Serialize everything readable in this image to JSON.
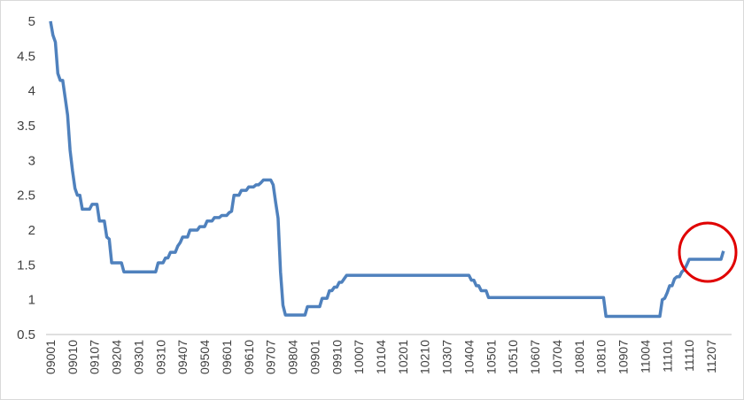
{
  "chart_data": {
    "type": "line",
    "color": "#4f81bd",
    "categories": [
      "09001",
      null,
      null,
      null,
      null,
      null,
      null,
      null,
      null,
      "09010",
      null,
      null,
      null,
      null,
      null,
      null,
      null,
      null,
      "09107",
      null,
      null,
      null,
      null,
      null,
      null,
      null,
      null,
      "09204",
      null,
      null,
      null,
      null,
      null,
      null,
      null,
      null,
      "09301",
      null,
      null,
      null,
      null,
      null,
      null,
      null,
      null,
      "09310",
      null,
      null,
      null,
      null,
      null,
      null,
      null,
      null,
      "09407",
      null,
      null,
      null,
      null,
      null,
      null,
      null,
      null,
      "09504",
      null,
      null,
      null,
      null,
      null,
      null,
      null,
      null,
      "09601",
      null,
      null,
      null,
      null,
      null,
      null,
      null,
      null,
      "09610",
      null,
      null,
      null,
      null,
      null,
      null,
      null,
      null,
      "09707",
      null,
      null,
      null,
      null,
      null,
      null,
      null,
      null,
      "09804",
      null,
      null,
      null,
      null,
      null,
      null,
      null,
      null,
      "09901",
      null,
      null,
      null,
      null,
      null,
      null,
      null,
      null,
      "09910",
      null,
      null,
      null,
      null,
      null,
      null,
      null,
      null,
      "10007",
      null,
      null,
      null,
      null,
      null,
      null,
      null,
      null,
      "10104",
      null,
      null,
      null,
      null,
      null,
      null,
      null,
      null,
      "10201",
      null,
      null,
      null,
      null,
      null,
      null,
      null,
      null,
      "10210",
      null,
      null,
      null,
      null,
      null,
      null,
      null,
      null,
      "10307",
      null,
      null,
      null,
      null,
      null,
      null,
      null,
      null,
      "10404",
      null,
      null,
      null,
      null,
      null,
      null,
      null,
      null,
      "10501",
      null,
      null,
      null,
      null,
      null,
      null,
      null,
      null,
      "10510",
      null,
      null,
      null,
      null,
      null,
      null,
      null,
      null,
      "10607",
      null,
      null,
      null,
      null,
      null,
      null,
      null,
      null,
      "10704",
      null,
      null,
      null,
      null,
      null,
      null,
      null,
      null,
      "10801",
      null,
      null,
      null,
      null,
      null,
      null,
      null,
      null,
      "10810",
      null,
      null,
      null,
      null,
      null,
      null,
      null,
      null,
      "10907",
      null,
      null,
      null,
      null,
      null,
      null,
      null,
      null,
      "11004",
      null,
      null,
      null,
      null,
      null,
      null,
      null,
      null,
      "11101",
      null,
      null,
      null,
      null,
      null,
      null,
      null,
      null,
      "11110",
      null,
      null,
      null,
      null,
      null,
      null,
      null,
      null,
      "11207",
      null,
      null,
      null,
      null,
      null
    ],
    "values": [
      5,
      4.8,
      4.7,
      4.25,
      4.15,
      4.15,
      3.9,
      3.65,
      3.15,
      2.85,
      2.6,
      2.5,
      2.5,
      2.3,
      2.3,
      2.3,
      2.3,
      2.37,
      2.37,
      2.37,
      2.13,
      2.13,
      2.13,
      1.9,
      1.87,
      1.53,
      1.53,
      1.53,
      1.53,
      1.53,
      1.4,
      1.4,
      1.4,
      1.4,
      1.4,
      1.4,
      1.4,
      1.4,
      1.4,
      1.4,
      1.4,
      1.4,
      1.4,
      1.4,
      1.53,
      1.53,
      1.53,
      1.6,
      1.6,
      1.68,
      1.68,
      1.68,
      1.77,
      1.82,
      1.9,
      1.9,
      1.9,
      2,
      2,
      2,
      2,
      2.05,
      2.05,
      2.05,
      2.13,
      2.13,
      2.13,
      2.18,
      2.18,
      2.18,
      2.21,
      2.21,
      2.21,
      2.25,
      2.27,
      2.5,
      2.5,
      2.5,
      2.57,
      2.57,
      2.57,
      2.62,
      2.62,
      2.62,
      2.65,
      2.65,
      2.68,
      2.72,
      2.72,
      2.72,
      2.72,
      2.65,
      2.4,
      2.17,
      1.4,
      0.92,
      0.78,
      0.78,
      0.78,
      0.78,
      0.78,
      0.78,
      0.78,
      0.78,
      0.78,
      0.9,
      0.9,
      0.9,
      0.9,
      0.9,
      0.9,
      1.02,
      1.02,
      1.02,
      1.13,
      1.13,
      1.18,
      1.18,
      1.25,
      1.25,
      1.3,
      1.35,
      1.35,
      1.35,
      1.35,
      1.35,
      1.35,
      1.35,
      1.35,
      1.35,
      1.35,
      1.35,
      1.35,
      1.35,
      1.35,
      1.35,
      1.35,
      1.35,
      1.35,
      1.35,
      1.35,
      1.35,
      1.35,
      1.35,
      1.35,
      1.35,
      1.35,
      1.35,
      1.35,
      1.35,
      1.35,
      1.35,
      1.35,
      1.35,
      1.35,
      1.35,
      1.35,
      1.35,
      1.35,
      1.35,
      1.35,
      1.35,
      1.35,
      1.35,
      1.35,
      1.35,
      1.35,
      1.35,
      1.35,
      1.35,
      1.35,
      1.35,
      1.28,
      1.28,
      1.2,
      1.2,
      1.13,
      1.13,
      1.13,
      1.03,
      1.03,
      1.03,
      1.03,
      1.03,
      1.03,
      1.03,
      1.03,
      1.03,
      1.03,
      1.03,
      1.03,
      1.03,
      1.03,
      1.03,
      1.03,
      1.03,
      1.03,
      1.03,
      1.03,
      1.03,
      1.03,
      1.03,
      1.03,
      1.03,
      1.03,
      1.03,
      1.03,
      1.03,
      1.03,
      1.03,
      1.03,
      1.03,
      1.03,
      1.03,
      1.03,
      1.03,
      1.03,
      1.03,
      1.03,
      1.03,
      1.03,
      1.03,
      1.03,
      1.03,
      1.03,
      1.03,
      1.03,
      0.76,
      0.76,
      0.76,
      0.76,
      0.76,
      0.76,
      0.76,
      0.76,
      0.76,
      0.76,
      0.76,
      0.76,
      0.76,
      0.76,
      0.76,
      0.76,
      0.76,
      0.76,
      0.76,
      0.76,
      0.76,
      0.76,
      0.76,
      1,
      1.02,
      1.1,
      1.2,
      1.2,
      1.3,
      1.33,
      1.33,
      1.4,
      1.43,
      1.5,
      1.58,
      1.58,
      1.58,
      1.58,
      1.58,
      1.58,
      1.58,
      1.58,
      1.58,
      1.58,
      1.58,
      1.58,
      1.58,
      1.58,
      1.7
    ],
    "ylim": [
      0.5,
      5
    ],
    "yticks": [
      0.5,
      1,
      1.5,
      2,
      2.5,
      3,
      3.5,
      4,
      4.5,
      5
    ],
    "grid": false
  }
}
